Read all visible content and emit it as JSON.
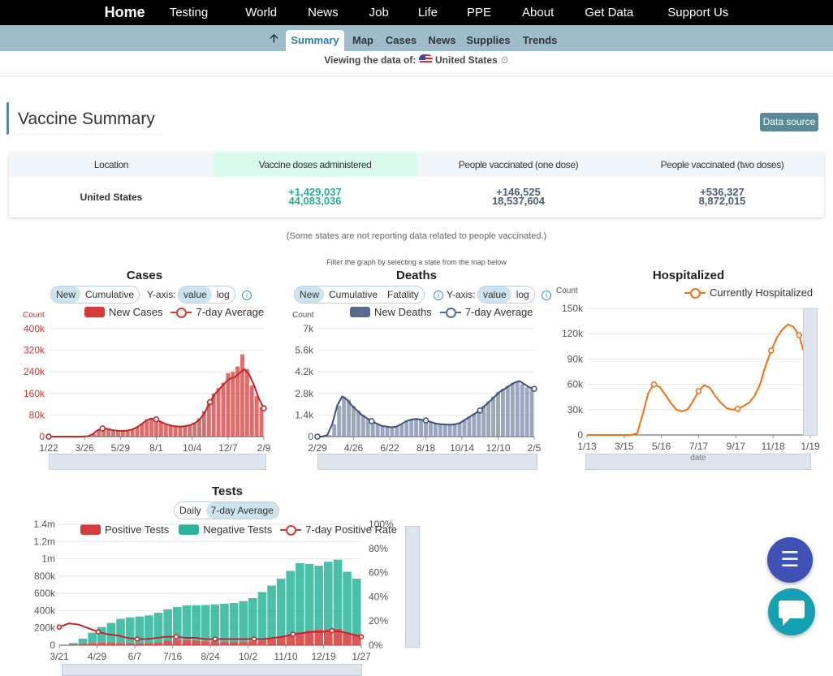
{
  "nav": {
    "items": [
      "Home",
      "Testing",
      "World",
      "News",
      "Job",
      "Life",
      "PPE",
      "About",
      "Get Data",
      "Support Us"
    ]
  },
  "subnav": {
    "tabs": [
      "Summary",
      "Map",
      "Cases",
      "News",
      "Supplies",
      "Trends"
    ],
    "active": "Summary"
  },
  "viewing": {
    "label": "Viewing the data of:",
    "location": "United States"
  },
  "vaccine": {
    "title": "Vaccine Summary",
    "data_source": "Data source",
    "headers": [
      "Location",
      "Vaccine doses administered",
      "People vaccinated (one dose)",
      "People vaccinated (two doses)"
    ],
    "row": {
      "location": "United States",
      "doses_inc": "+1,429,037",
      "doses_total": "44,083,036",
      "one_inc": "+146,525",
      "one_total": "18,537,604",
      "two_inc": "+536,327",
      "two_total": "8,872,015"
    },
    "note": "(Some states are not reporting data related to people vaccinated.)"
  },
  "filter_hint": "Filter the graph by selecting a state from the map below",
  "cases": {
    "title": "Cases",
    "toggle": [
      "New",
      "Cumulative"
    ],
    "yaxis_label": "Y-axis:",
    "yaxis": [
      "value",
      "log"
    ],
    "legend": [
      "New Cases",
      "7-day Average"
    ],
    "ylabel": "Count"
  },
  "deaths": {
    "title": "Deaths",
    "toggle": [
      "New",
      "Cumulative",
      "Fatality"
    ],
    "yaxis_label": "Y-axis:",
    "yaxis": [
      "value",
      "log"
    ],
    "legend": [
      "New Deaths",
      "7-day Average"
    ],
    "ylabel": "Count"
  },
  "hosp": {
    "title": "Hospitalized",
    "legend": [
      "Currently Hospitalized"
    ],
    "ylabel": "Count",
    "slider_label": "date"
  },
  "tests": {
    "title": "Tests",
    "toggle": [
      "Daily",
      "7-day Average"
    ],
    "legend": [
      "Positive Tests",
      "Negative Tests",
      "7-day Positive Rate"
    ]
  },
  "colors": {
    "cases": "#d63b3b",
    "deaths": "#5a6a8f",
    "hosp": "#f07010",
    "neg": "#2bb59a",
    "accent": "#5a8a96"
  },
  "chart_data": [
    {
      "type": "bar",
      "title": "Cases",
      "ylabel": "Count",
      "ylim": [
        0,
        400000
      ],
      "yticks": [
        "0",
        "80k",
        "160k",
        "240k",
        "320k",
        "400k"
      ],
      "xticks": [
        "1/22",
        "3/26",
        "5/29",
        "8/1",
        "10/4",
        "12/7",
        "2/9"
      ],
      "series": [
        {
          "name": "New Cases",
          "values": [
            0,
            0,
            0,
            0,
            0,
            0,
            0,
            200,
            2000,
            10000,
            25000,
            31000,
            29000,
            24000,
            22000,
            21000,
            22000,
            27000,
            35000,
            48000,
            62000,
            69000,
            66000,
            55000,
            46000,
            42000,
            38000,
            37000,
            39000,
            44000,
            52000,
            68000,
            95000,
            130000,
            160000,
            180000,
            200000,
            235000,
            240000,
            260000,
            305000,
            250000,
            190000,
            150000,
            110000
          ]
        },
        {
          "name": "7-day Average",
          "values": [
            0,
            0,
            0,
            0,
            0,
            0,
            0,
            200,
            1500,
            9000,
            24000,
            30000,
            29000,
            24000,
            22000,
            21000,
            22000,
            26000,
            34000,
            46000,
            61000,
            67000,
            64000,
            54000,
            46000,
            41000,
            38000,
            37000,
            39000,
            43000,
            51000,
            66000,
            92000,
            128000,
            158000,
            178000,
            198000,
            214000,
            220000,
            235000,
            250000,
            230000,
            190000,
            140000,
            105000
          ]
        }
      ]
    },
    {
      "type": "bar",
      "title": "Deaths",
      "ylabel": "Count",
      "ylim": [
        0,
        7000
      ],
      "yticks": [
        "0",
        "1.4k",
        "2.8k",
        "4.2k",
        "5.6k",
        "7k"
      ],
      "xticks": [
        "2/29",
        "4/26",
        "6/22",
        "8/18",
        "10/14",
        "12/10",
        "2/5"
      ],
      "series": [
        {
          "name": "New Deaths",
          "values": [
            0,
            0,
            100,
            800,
            2000,
            2600,
            2400,
            2000,
            1700,
            1400,
            1200,
            1000,
            850,
            700,
            650,
            600,
            650,
            800,
            1000,
            1100,
            1150,
            1100,
            1050,
            950,
            850,
            800,
            780,
            770,
            800,
            900,
            1100,
            1300,
            1500,
            1700,
            2000,
            2300,
            2600,
            2900,
            3100,
            3300,
            3500,
            3600,
            3400,
            3200,
            3100
          ]
        },
        {
          "name": "7-day Average",
          "values": [
            0,
            0,
            100,
            800,
            2000,
            2600,
            2400,
            2000,
            1700,
            1400,
            1200,
            1000,
            850,
            700,
            650,
            600,
            650,
            800,
            1000,
            1100,
            1150,
            1100,
            1050,
            950,
            850,
            800,
            780,
            770,
            800,
            900,
            1100,
            1300,
            1500,
            1700,
            2000,
            2300,
            2600,
            2900,
            3100,
            3300,
            3500,
            3600,
            3400,
            3200,
            3100
          ]
        }
      ]
    },
    {
      "type": "line",
      "title": "Hospitalized",
      "ylabel": "Count",
      "ylim": [
        0,
        150000
      ],
      "yticks": [
        "0",
        "30k",
        "60k",
        "90k",
        "120k",
        "150k"
      ],
      "xticks": [
        "1/13",
        "3/15",
        "5/16",
        "7/17",
        "9/17",
        "11/18",
        "1/19"
      ],
      "series": [
        {
          "name": "Currently Hospitalized",
          "values": [
            0,
            0,
            0,
            0,
            0,
            0,
            0,
            0,
            0,
            2000,
            25000,
            50000,
            60000,
            57000,
            48000,
            38000,
            30000,
            28000,
            30000,
            40000,
            52000,
            59000,
            56000,
            46000,
            38000,
            32000,
            30000,
            31000,
            34000,
            38000,
            46000,
            60000,
            82000,
            100000,
            115000,
            125000,
            131000,
            128000,
            118000,
            95000,
            78000
          ]
        }
      ]
    },
    {
      "type": "bar",
      "title": "Tests",
      "ylim": [
        0,
        1400000
      ],
      "yticks": [
        "0",
        "200k",
        "400k",
        "600k",
        "800k",
        "1m",
        "1.2m",
        "1.4m"
      ],
      "y2ticks": [
        "0%",
        "20%",
        "40%",
        "60%",
        "80%",
        "100%"
      ],
      "xticks": [
        "3/21",
        "4/29",
        "6/7",
        "7/16",
        "8/24",
        "10/2",
        "11/10",
        "12/19",
        "1/27"
      ],
      "series": [
        {
          "name": "Positive Tests",
          "values": [
            0,
            5000,
            15000,
            25000,
            30000,
            28000,
            25000,
            22000,
            22000,
            25000,
            35000,
            55000,
            62000,
            60000,
            52000,
            45000,
            42000,
            40000,
            38000,
            40000,
            45000,
            55000,
            70000,
            90000,
            120000,
            150000,
            170000,
            180000,
            185000,
            190000,
            150000,
            120000
          ]
        },
        {
          "name": "Negative Tests",
          "values": [
            0,
            20000,
            60000,
            120000,
            180000,
            230000,
            280000,
            300000,
            310000,
            320000,
            340000,
            360000,
            380000,
            400000,
            410000,
            420000,
            430000,
            440000,
            450000,
            470000,
            500000,
            560000,
            620000,
            680000,
            740000,
            800000,
            770000,
            740000,
            780000,
            800000,
            700000,
            650000
          ]
        },
        {
          "name": "7-day Positive Rate",
          "values": [
            15,
            18,
            17,
            14,
            11,
            9,
            8,
            6,
            5,
            5,
            6,
            7,
            7,
            6,
            6,
            5,
            5,
            5,
            5,
            5,
            5,
            5,
            6,
            7,
            9,
            10,
            11,
            11,
            12,
            11,
            9,
            7
          ]
        }
      ]
    }
  ]
}
